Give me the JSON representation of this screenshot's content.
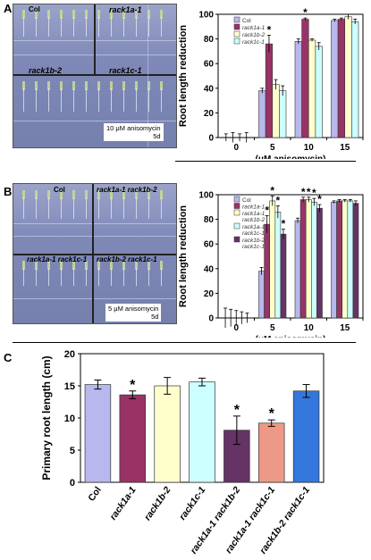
{
  "panels": [
    {
      "letter": "A",
      "photo_labels": [
        "Col",
        "rack1a-1",
        "rack1b-2",
        "rack1c-1"
      ],
      "photo_note": [
        "10 μM anisomycin",
        "5d"
      ]
    },
    {
      "letter": "B",
      "photo_labels": [
        "Col",
        "rack1a-1 rack1b-2",
        "rack1a-1 rack1c-1",
        "rack1b-2 rack1c-1"
      ],
      "photo_note": [
        "5 μM anisomycin",
        "5d"
      ]
    },
    {
      "letter": "C"
    }
  ],
  "colors": {
    "col": "#b8b8ee",
    "rack1a": "#993366",
    "rack1b": "#ffffcc",
    "rack1c": "#ccffff",
    "rack1a_rack1b": "#663366",
    "rack1a_rack1c": "#ee9988",
    "rack1b_rack1c": "#3377dd"
  },
  "chart_data": [
    {
      "type": "bar",
      "ylabel": "Root length reduction",
      "xlabel": "(μM anisomycin)",
      "categories": [
        "0",
        "5",
        "10",
        "15"
      ],
      "ylim": [
        0,
        100
      ],
      "yticks": [
        0,
        20,
        40,
        60,
        80,
        100
      ],
      "legend_position": "top-left",
      "series": [
        {
          "name": "Col",
          "values": [
            0,
            38,
            78,
            95
          ],
          "errors": [
            3,
            2,
            2,
            1
          ],
          "color": "#b8b8ee"
        },
        {
          "name": "rack1a-1",
          "values": [
            0,
            76,
            96,
            96
          ],
          "errors": [
            4,
            7,
            1,
            1
          ],
          "color": "#993366"
        },
        {
          "name": "rack1b-2",
          "values": [
            0,
            43,
            79,
            98
          ],
          "errors": [
            3,
            4,
            1,
            2
          ],
          "color": "#ffffcc"
        },
        {
          "name": "rack1c-1",
          "values": [
            0,
            38,
            74,
            94
          ],
          "errors": [
            4,
            4,
            3,
            2
          ],
          "color": "#ccffff"
        }
      ],
      "stars": [
        {
          "category": "5",
          "series": "rack1a-1",
          "label": "*"
        },
        {
          "category": "10",
          "series": "rack1a-1",
          "label": "*"
        }
      ]
    },
    {
      "type": "bar",
      "ylabel": "Root length reduction",
      "xlabel": "(μM anisomycin)",
      "categories": [
        "0",
        "5",
        "10",
        "15"
      ],
      "ylim": [
        0,
        100
      ],
      "yticks": [
        0,
        20,
        40,
        60,
        80,
        100
      ],
      "legend_position": "top-left",
      "series": [
        {
          "name": "Col",
          "values": [
            0,
            38,
            79,
            94
          ],
          "errors": [
            8,
            3,
            2,
            1
          ],
          "color": "#b8b8ee"
        },
        {
          "name": "rack1a-1",
          "values": [
            0,
            76,
            96,
            95
          ],
          "errors": [
            7,
            7,
            2,
            1
          ],
          "color": "#993366"
        },
        {
          "name": "rack1a-1 rack1b-2",
          "values": [
            0,
            95,
            96,
            95
          ],
          "errors": [
            6,
            4,
            2,
            1
          ],
          "color": "#ffffcc"
        },
        {
          "name": "rack1a-1 rack1c-1",
          "values": [
            0,
            86,
            94,
            95
          ],
          "errors": [
            5,
            5,
            3,
            1
          ],
          "color": "#ccffff"
        },
        {
          "name": "rack1b-2 rack1c-1",
          "values": [
            0,
            68,
            89,
            93
          ],
          "errors": [
            4,
            4,
            3,
            2
          ],
          "color": "#663366"
        }
      ],
      "stars": [
        {
          "category": "5",
          "series": "rack1a-1",
          "label": "*"
        },
        {
          "category": "5",
          "series": "rack1a-1 rack1b-2",
          "label": "*"
        },
        {
          "category": "5",
          "series": "rack1a-1 rack1c-1",
          "label": "*"
        },
        {
          "category": "5",
          "series": "rack1b-2 rack1c-1",
          "label": "*"
        },
        {
          "category": "10",
          "series": "rack1a-1",
          "label": "*"
        },
        {
          "category": "10",
          "series": "rack1a-1 rack1b-2",
          "label": "*"
        },
        {
          "category": "10",
          "series": "rack1a-1 rack1c-1",
          "label": "*"
        },
        {
          "category": "10",
          "series": "rack1b-2 rack1c-1",
          "label": "*"
        }
      ]
    },
    {
      "type": "bar",
      "ylabel": "Primary root length (cm)",
      "xlabel": "",
      "categories": [
        "Col",
        "rack1a-1",
        "rack1b-2",
        "rack1c-1",
        "rack1a-1 rack1b-2",
        "rack1a-1 rack1c-1",
        "rack1b-2 rack1c-1"
      ],
      "ylim": [
        0,
        20
      ],
      "yticks": [
        0,
        5,
        10,
        15,
        20
      ],
      "values": [
        15.2,
        13.6,
        15.0,
        15.6,
        8.1,
        9.2,
        14.2
      ],
      "errors": [
        0.7,
        0.6,
        1.3,
        0.6,
        2.2,
        0.5,
        1.0
      ],
      "colors": [
        "#b8b8ee",
        "#993366",
        "#ffffcc",
        "#ccffff",
        "#663366",
        "#ee9988",
        "#3377dd"
      ],
      "stars": [
        false,
        true,
        false,
        false,
        true,
        true,
        false
      ]
    }
  ]
}
